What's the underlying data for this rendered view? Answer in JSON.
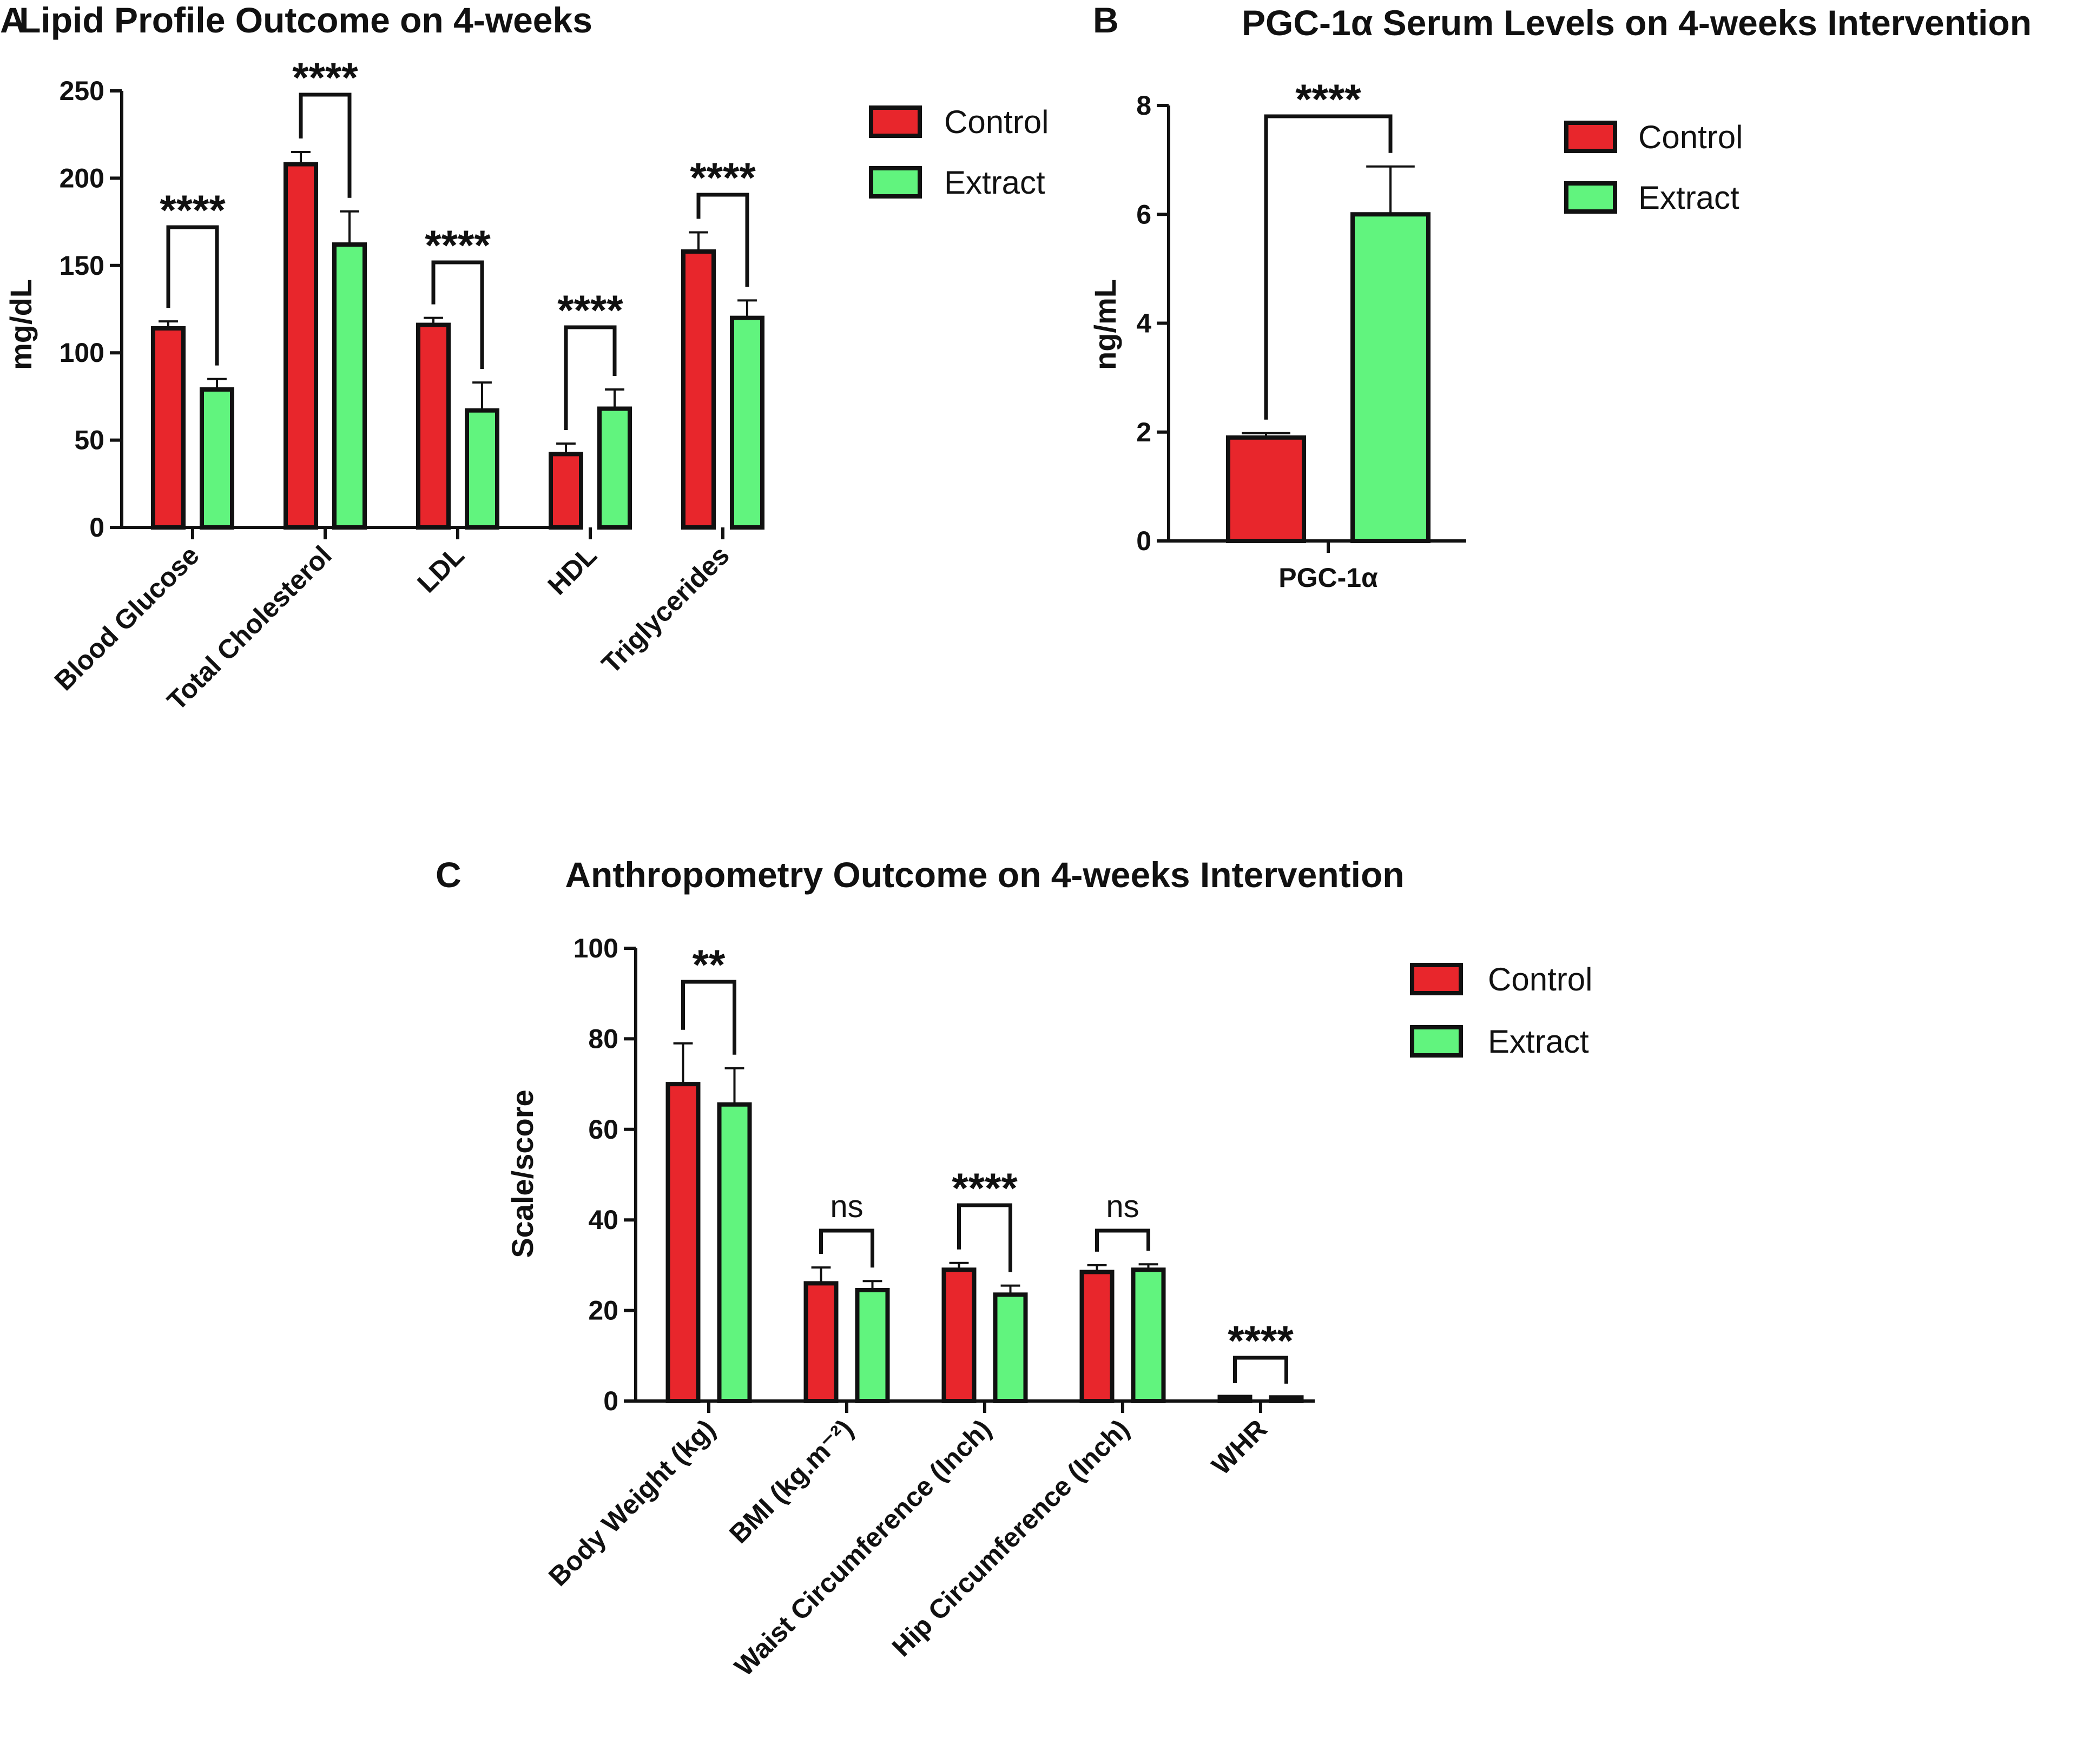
{
  "colors": {
    "control": "#e8262c",
    "extract": "#61f47e",
    "axis": "#111111"
  },
  "chart_data": [
    {
      "panel": "A",
      "type": "bar",
      "title": "Lipid Profile Outcome on 4-weeks",
      "xlabel": "",
      "ylabel": "mg/dL",
      "ylim": [
        0,
        250
      ],
      "yticks": [
        0,
        50,
        100,
        150,
        200,
        250
      ],
      "legend": {
        "position": "top-right",
        "entries": [
          "Control",
          "Extract"
        ]
      },
      "categories": [
        "Blood Glucose",
        "Total Cholesterol",
        "LDL",
        "HDL",
        "Triglycerides"
      ],
      "series": [
        {
          "name": "Control",
          "values": [
            114,
            208,
            116,
            42,
            158
          ],
          "errors": [
            4,
            7,
            4,
            6,
            11
          ]
        },
        {
          "name": "Extract",
          "values": [
            79,
            162,
            67,
            68,
            120
          ],
          "errors": [
            6,
            19,
            16,
            11,
            10
          ]
        }
      ],
      "significance": [
        "****",
        "****",
        "****",
        "****",
        "****"
      ]
    },
    {
      "panel": "B",
      "type": "bar",
      "title": "PGC-1α Serum Levels on 4-weeks Intervention",
      "xlabel": "",
      "ylabel": "ng/mL",
      "ylim": [
        0,
        8
      ],
      "yticks": [
        0,
        2,
        4,
        6,
        8
      ],
      "legend": {
        "position": "top-right",
        "entries": [
          "Control",
          "Extract"
        ]
      },
      "categories": [
        "PGC-1α"
      ],
      "series": [
        {
          "name": "Control",
          "values": [
            1.9
          ],
          "errors": [
            0.08
          ]
        },
        {
          "name": "Extract",
          "values": [
            6.0
          ],
          "errors": [
            0.88
          ]
        }
      ],
      "significance": [
        "****"
      ]
    },
    {
      "panel": "C",
      "type": "bar",
      "title": "Anthropometry Outcome on 4-weeks Intervention",
      "xlabel": "",
      "ylabel": "Scale/score",
      "ylim": [
        0,
        100
      ],
      "yticks": [
        0,
        20,
        40,
        60,
        80,
        100
      ],
      "legend": {
        "position": "top-right",
        "entries": [
          "Control",
          "Extract"
        ]
      },
      "categories": [
        "Body Weight (kg)",
        "BMI (kg.m⁻²)",
        "Waist Circumference (Inch)",
        "Hip Circumference (Inch)",
        "WHR"
      ],
      "series": [
        {
          "name": "Control",
          "values": [
            70,
            26,
            29,
            28.5,
            0.9
          ],
          "errors": [
            9,
            3.5,
            1.5,
            1.5,
            0.05
          ]
        },
        {
          "name": "Extract",
          "values": [
            65.5,
            24.5,
            23.5,
            29,
            0.8
          ],
          "errors": [
            8,
            2,
            2,
            1.2,
            0.05
          ]
        }
      ],
      "significance": [
        "**",
        "ns",
        "****",
        "ns",
        "****"
      ]
    }
  ]
}
